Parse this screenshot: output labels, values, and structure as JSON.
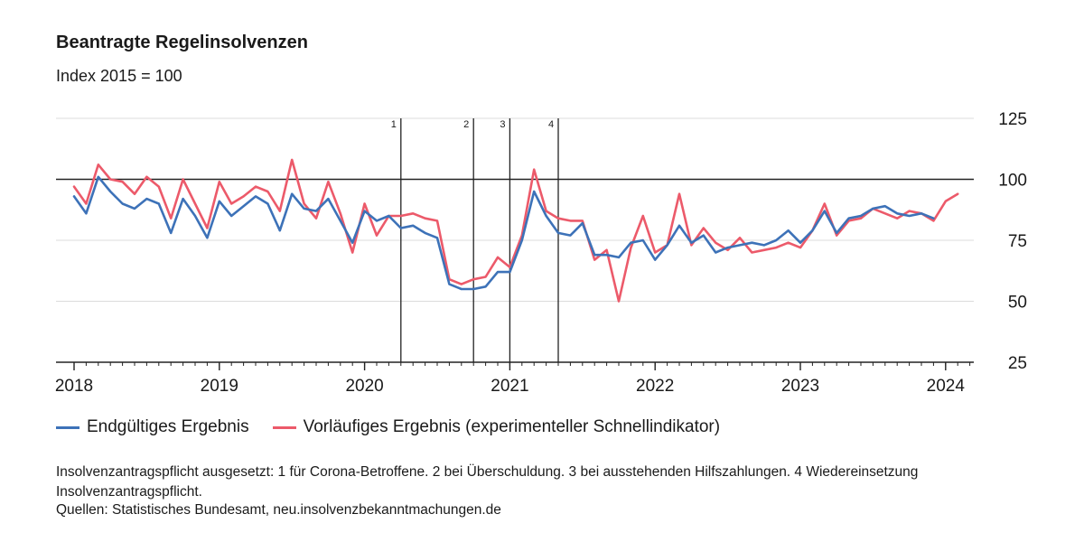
{
  "title": "Beantragte Regelinsolvenzen",
  "subtitle": "Index 2015 = 100",
  "note": "Insolvenzantragspflicht ausgesetzt: 1 für Corona-Betroffene. 2 bei Überschuldung. 3 bei ausstehenden Hilfszahlungen. 4 Wiedereinsetzung Insolvenzantragspflicht.",
  "source": "Quellen: Statistisches Bundesamt, neu.insolvenzbekanntmachungen.de",
  "colors": {
    "series1": "#3d72b8",
    "series2": "#ec5a6a"
  },
  "chart_data": {
    "type": "line",
    "title": "Beantragte Regelinsolvenzen",
    "subtitle": "Index 2015 = 100",
    "ylim": [
      25,
      125
    ],
    "yticks": [
      25,
      50,
      75,
      100,
      125
    ],
    "ytick_labels": [
      "25",
      "50",
      "75",
      "100",
      "125"
    ],
    "reference_line": 100,
    "x_start": "2018-01",
    "xtick_labels": [
      "2018",
      "2019",
      "2020",
      "2021",
      "2022",
      "2023",
      "2024"
    ],
    "xtick_dates": [
      "2018-01",
      "2019-01",
      "2020-01",
      "2021-01",
      "2022-01",
      "2023-01",
      "2024-01"
    ],
    "xlim": [
      "2018-01",
      "2024-03"
    ],
    "vlines": [
      {
        "label": "1",
        "date": "2020-04"
      },
      {
        "label": "2",
        "date": "2020-10"
      },
      {
        "label": "3",
        "date": "2021-01"
      },
      {
        "label": "4",
        "date": "2021-05"
      }
    ],
    "series": [
      {
        "name": "Endgültiges Ergebnis",
        "color": "#3d72b8",
        "values": [
          93,
          86,
          101,
          95,
          90,
          88,
          92,
          90,
          78,
          92,
          85,
          76,
          91,
          85,
          89,
          93,
          90,
          79,
          94,
          88,
          87,
          92,
          83,
          74,
          87,
          83,
          85,
          80,
          81,
          78,
          76,
          57,
          55,
          55,
          56,
          62,
          62,
          75,
          95,
          85,
          78,
          77,
          82,
          69,
          69,
          68,
          74,
          75,
          67,
          73,
          81,
          74,
          77,
          70,
          72,
          73,
          74,
          73,
          75,
          79,
          74,
          79,
          87,
          78,
          84,
          85,
          88,
          89,
          86,
          85,
          86,
          84,
          null,
          null
        ]
      },
      {
        "name": "Vorläufiges Ergebnis (experimenteller Schnellindikator)",
        "color": "#ec5a6a",
        "values": [
          97,
          90,
          106,
          100,
          99,
          94,
          101,
          97,
          84,
          100,
          90,
          80,
          99,
          90,
          93,
          97,
          95,
          87,
          108,
          90,
          84,
          99,
          86,
          70,
          90,
          77,
          85,
          85,
          86,
          84,
          83,
          59,
          57,
          59,
          60,
          68,
          64,
          77,
          104,
          87,
          84,
          83,
          83,
          67,
          71,
          50,
          72,
          85,
          70,
          73,
          94,
          73,
          80,
          74,
          71,
          76,
          70,
          71,
          72,
          74,
          72,
          79,
          90,
          77,
          83,
          84,
          88,
          86,
          84,
          87,
          86,
          83,
          91,
          94
        ]
      }
    ]
  }
}
